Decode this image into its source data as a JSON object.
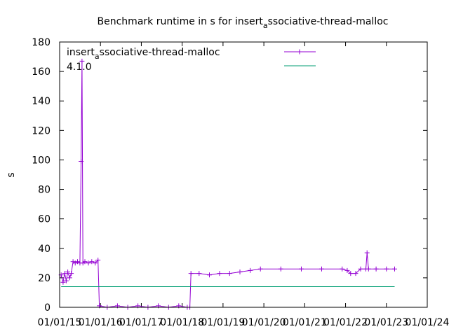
{
  "chart_data": {
    "type": "line",
    "title": {
      "prefix": "Benchmark runtime in s for insert",
      "subscript": "a",
      "suffix": "ssociative-thread-malloc"
    },
    "ylabel": "s",
    "xlabel": "",
    "ylim": [
      0,
      180
    ],
    "yticks": [
      0,
      20,
      40,
      60,
      80,
      100,
      120,
      140,
      160,
      180
    ],
    "xlim": [
      "2015-01-01",
      "2024-01-01"
    ],
    "xticks": [
      "01/01/15",
      "01/01/16",
      "01/01/17",
      "01/01/18",
      "01/01/19",
      "01/01/20",
      "01/01/21",
      "01/01/22",
      "01/01/23",
      "01/01/24"
    ],
    "annotation": {
      "line1_prefix": "insert",
      "line1_subscript": "a",
      "line1_suffix": "ssociative-thread-malloc",
      "line2": "4.1.0"
    },
    "legend_position": "top-right",
    "grid": false,
    "colors": {
      "series_main": "#9400d3",
      "series_ref": "#009e73"
    },
    "series": [
      {
        "style": "line-with-plus-markers",
        "color": "#9400d3",
        "points": [
          [
            "2015-01-15",
            22
          ],
          [
            "2015-02-01",
            17
          ],
          [
            "2015-02-15",
            23
          ],
          [
            "2015-03-01",
            18
          ],
          [
            "2015-03-15",
            24
          ],
          [
            "2015-04-01",
            20
          ],
          [
            "2015-04-15",
            23
          ],
          [
            "2015-05-01",
            31
          ],
          [
            "2015-05-20",
            30
          ],
          [
            "2015-06-10",
            31
          ],
          [
            "2015-07-01",
            30
          ],
          [
            "2015-07-12",
            99
          ],
          [
            "2015-07-20",
            167
          ],
          [
            "2015-07-28",
            30
          ],
          [
            "2015-08-15",
            31
          ],
          [
            "2015-09-15",
            30
          ],
          [
            "2015-10-15",
            31
          ],
          [
            "2015-11-15",
            30
          ],
          [
            "2015-12-10",
            32
          ],
          [
            "2015-12-22",
            1
          ],
          [
            "2016-03-01",
            0
          ],
          [
            "2016-06-01",
            1
          ],
          [
            "2016-09-01",
            0
          ],
          [
            "2016-12-01",
            1
          ],
          [
            "2017-03-01",
            0
          ],
          [
            "2017-06-01",
            1
          ],
          [
            "2017-09-01",
            0
          ],
          [
            "2017-12-01",
            1
          ],
          [
            "2018-02-15",
            0
          ],
          [
            "2018-03-10",
            0
          ],
          [
            "2018-03-20",
            23
          ],
          [
            "2018-06-01",
            23
          ],
          [
            "2018-09-01",
            22
          ],
          [
            "2018-12-01",
            23
          ],
          [
            "2019-03-01",
            23
          ],
          [
            "2019-06-01",
            24
          ],
          [
            "2019-09-01",
            25
          ],
          [
            "2019-12-01",
            26
          ],
          [
            "2020-06-01",
            26
          ],
          [
            "2020-12-01",
            26
          ],
          [
            "2021-06-01",
            26
          ],
          [
            "2021-12-01",
            26
          ],
          [
            "2022-01-15",
            25
          ],
          [
            "2022-02-15",
            23
          ],
          [
            "2022-04-01",
            23
          ],
          [
            "2022-05-15",
            26
          ],
          [
            "2022-07-01",
            26
          ],
          [
            "2022-07-12",
            37
          ],
          [
            "2022-07-25",
            26
          ],
          [
            "2022-10-01",
            26
          ],
          [
            "2023-01-01",
            26
          ],
          [
            "2023-03-15",
            26
          ]
        ]
      },
      {
        "style": "line",
        "color": "#009e73",
        "points": [
          [
            "2015-01-15",
            14
          ],
          [
            "2023-03-15",
            14
          ]
        ]
      }
    ]
  }
}
